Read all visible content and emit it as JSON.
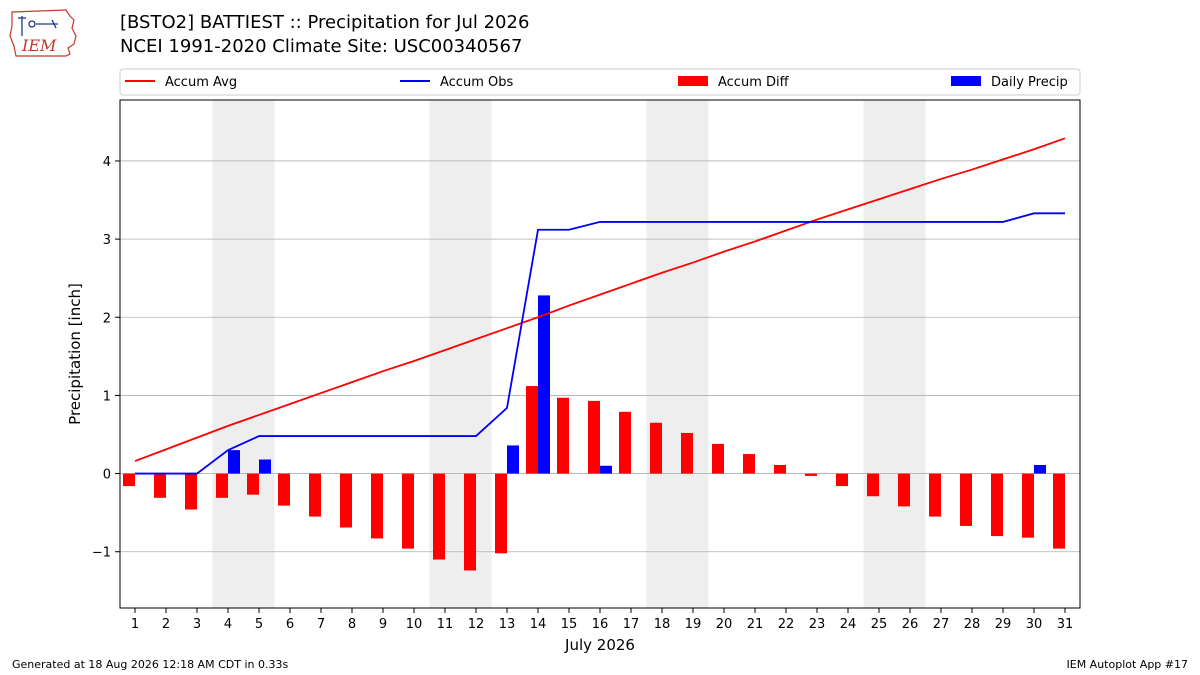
{
  "header": {
    "title_line1": "[BSTO2] BATTIEST :: Precipitation for Jul 2026",
    "title_line2": "NCEI 1991-2020 Climate Site: USC00340567"
  },
  "logo": {
    "text": "IEM",
    "icon": "iem-iowa-map-logo"
  },
  "footer": {
    "left": "Generated at 18 Aug 2026 12:18 AM CDT in 0.33s",
    "right": "IEM Autoplot App #17"
  },
  "chart_data": {
    "type": "bar",
    "xlabel": "July 2026",
    "ylabel": "Precipitation [inch]",
    "categories": [
      "1",
      "2",
      "3",
      "4",
      "5",
      "6",
      "7",
      "8",
      "9",
      "10",
      "11",
      "12",
      "13",
      "14",
      "15",
      "16",
      "17",
      "18",
      "19",
      "20",
      "21",
      "22",
      "23",
      "24",
      "25",
      "26",
      "27",
      "28",
      "29",
      "30",
      "31"
    ],
    "ylim": [
      -1.72,
      4.78
    ],
    "yticks": [
      -1,
      0,
      1,
      2,
      3,
      4
    ],
    "ytick_labels": [
      "−1",
      "0",
      "1",
      "2",
      "3",
      "4"
    ],
    "grid": true,
    "weekend_shading": [
      [
        4,
        5
      ],
      [
        11,
        12
      ],
      [
        18,
        19
      ],
      [
        25,
        26
      ]
    ],
    "legend": {
      "placement": "top",
      "entries": [
        "Accum Avg",
        "Accum Obs",
        "Accum Diff",
        "Daily Precip"
      ]
    },
    "series": [
      {
        "name": "Accum Avg",
        "kind": "line",
        "color": "#ff0000",
        "values": [
          0.16,
          0.31,
          0.46,
          0.61,
          0.75,
          0.89,
          1.03,
          1.17,
          1.31,
          1.44,
          1.58,
          1.72,
          1.86,
          2.0,
          2.15,
          2.29,
          2.43,
          2.57,
          2.7,
          2.84,
          2.97,
          3.11,
          3.25,
          3.38,
          3.51,
          3.64,
          3.77,
          3.89,
          4.02,
          4.15,
          4.29
        ]
      },
      {
        "name": "Accum Obs",
        "kind": "line",
        "color": "#0000ff",
        "values": [
          0.0,
          0.0,
          0.0,
          0.3,
          0.48,
          0.48,
          0.48,
          0.48,
          0.48,
          0.48,
          0.48,
          0.48,
          0.84,
          3.12,
          3.12,
          3.22,
          3.22,
          3.22,
          3.22,
          3.22,
          3.22,
          3.22,
          3.22,
          3.22,
          3.22,
          3.22,
          3.22,
          3.22,
          3.22,
          3.33,
          3.33
        ]
      },
      {
        "name": "Accum Diff",
        "kind": "bar",
        "color": "#ff0000",
        "values": [
          -0.16,
          -0.31,
          -0.46,
          -0.31,
          -0.27,
          -0.41,
          -0.55,
          -0.69,
          -0.83,
          -0.96,
          -1.1,
          -1.24,
          -1.02,
          1.12,
          0.97,
          0.93,
          0.79,
          0.65,
          0.52,
          0.38,
          0.25,
          0.11,
          -0.03,
          -0.16,
          -0.29,
          -0.42,
          -0.55,
          -0.67,
          -0.8,
          -0.82,
          -0.96
        ]
      },
      {
        "name": "Daily Precip",
        "kind": "bar",
        "color": "#0000ff",
        "values": [
          0,
          0,
          0,
          0.3,
          0.18,
          0,
          0,
          0,
          0,
          0,
          0,
          0,
          0.36,
          2.28,
          0,
          0.1,
          0,
          0,
          0,
          0,
          0,
          0,
          0,
          0,
          0,
          0,
          0,
          0,
          0,
          0.11,
          0
        ]
      }
    ]
  }
}
